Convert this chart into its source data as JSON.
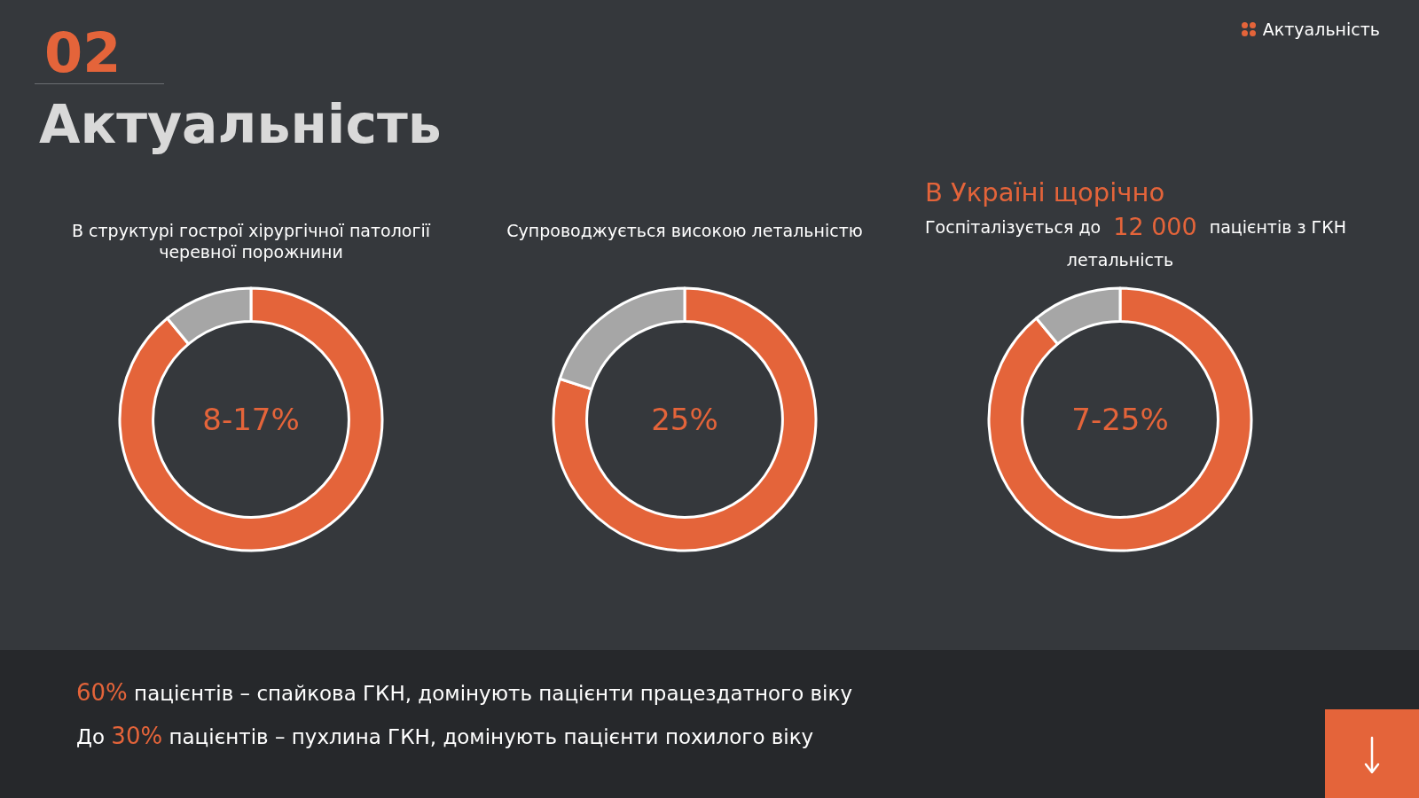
{
  "chart_data": [
    {
      "type": "other",
      "title": "Актуальність",
      "annotations": [
        "02",
        "Актуальність",
        "60%",
        "пацієнтів – спайкова ГКН, домінують пацієнти працездатного віку",
        "До",
        "30%",
        "пацієнтів – пухлина ГКН, домінують пацієнти похилого віку"
      ]
    },
    {
      "type": "donut",
      "title": "В структурі гострої хірургічної патології черевної порожнини",
      "categories": [
        null,
        null
      ],
      "values": [
        89,
        11
      ],
      "colors": [
        "#e4643a",
        "#a6a6a6"
      ],
      "annotations": [
        "8-17%"
      ]
    },
    {
      "type": "donut",
      "title": "Супроводжується високою летальністю",
      "categories": [
        null,
        null
      ],
      "values": [
        80,
        20
      ],
      "colors": [
        "#e4643a",
        "#a6a6a6"
      ],
      "annotations": [
        "25%"
      ]
    },
    {
      "type": "donut",
      "title": "В Україні щорічно",
      "subtitle": "Госпіталізується до",
      "categories": [
        null,
        null
      ],
      "values": [
        89,
        11
      ],
      "colors": [
        "#e4643a",
        "#a6a6a6"
      ],
      "annotations": [
        "12 000",
        "пацієнтів з ГКН",
        "летальність",
        "7-25%"
      ]
    }
  ]
}
